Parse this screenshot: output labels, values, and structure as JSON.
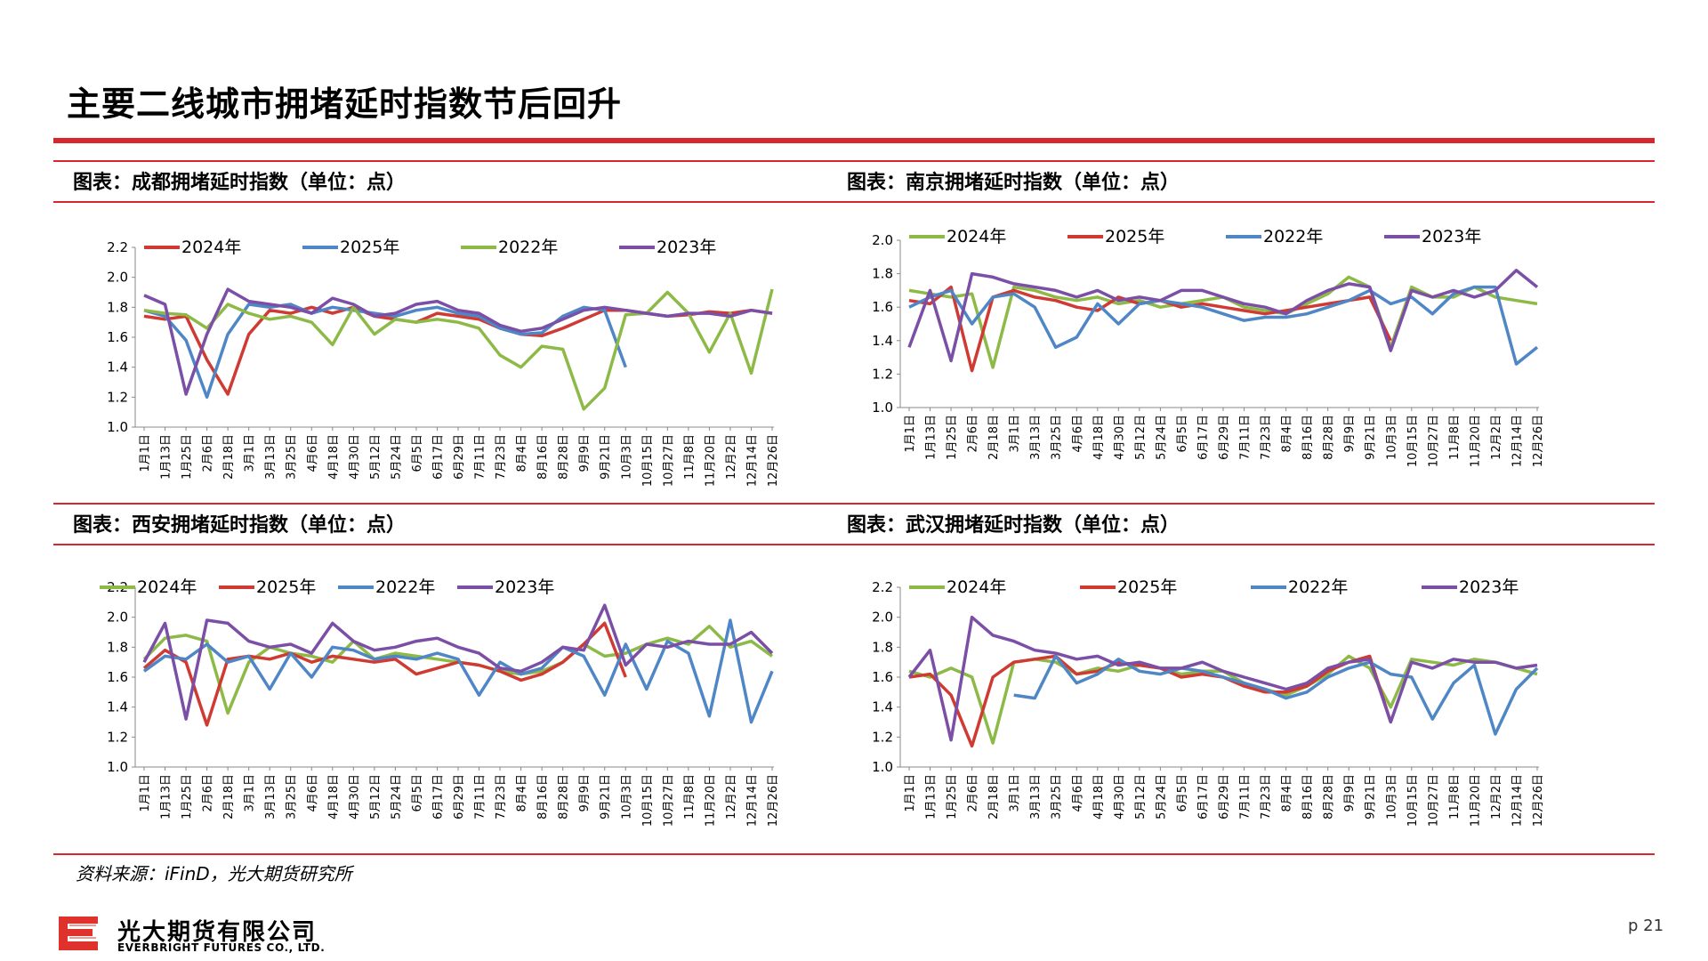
{
  "page": {
    "title": "主要二线城市拥堵延时指数节后回升",
    "source": "资料来源：iFinD，光大期货研究所",
    "page_number": "p 21",
    "logo_cn": "光大期货有限公司",
    "logo_en": "EVERBRIGHT FUTURES CO., LTD."
  },
  "colors": {
    "accent": "#d8262e",
    "green": "#8dba47",
    "red": "#cf3b32",
    "blue": "#4f86c6",
    "purple": "#7b4fa6"
  },
  "panels": [
    {
      "caption": "图表：成都拥堵延时指数（单位：点）"
    },
    {
      "caption": "图表：南京拥堵延时指数（单位：点）"
    },
    {
      "caption": "图表：西安拥堵延时指数（单位：点）"
    },
    {
      "caption": "图表：武汉拥堵延时指数（单位：点）"
    }
  ],
  "chart_data": [
    {
      "type": "line",
      "city": "成都",
      "title": "图表：成都拥堵延时指数（单位：点）",
      "ylim": [
        1.0,
        2.2
      ],
      "yticks": [
        "1.0",
        "1.2",
        "1.4",
        "1.6",
        "1.8",
        "2.0",
        "2.2"
      ],
      "x": [
        "1月1日",
        "1月13日",
        "1月25日",
        "2月6日",
        "2月18日",
        "3月1日",
        "3月13日",
        "3月25日",
        "4月6日",
        "4月18日",
        "4月30日",
        "5月12日",
        "5月24日",
        "6月5日",
        "6月17日",
        "6月29日",
        "7月11日",
        "7月23日",
        "8月4日",
        "8月16日",
        "8月28日",
        "9月9日",
        "9月21日",
        "10月3日",
        "10月15日",
        "10月27日",
        "11月8日",
        "11月20日",
        "12月2日",
        "12月14日",
        "12月26日"
      ],
      "legend_position": "top",
      "series": [
        {
          "name": "2024年",
          "color": "#cf3b32",
          "values": [
            1.74,
            1.72,
            1.74,
            1.45,
            1.22,
            1.62,
            1.78,
            1.76,
            1.8,
            1.76,
            1.8,
            1.74,
            1.72,
            1.7,
            1.76,
            1.74,
            1.72,
            1.66,
            1.62,
            1.61,
            1.66,
            1.72,
            1.78,
            1.78,
            1.76,
            1.74,
            1.75,
            1.77,
            1.76,
            1.78,
            1.76
          ]
        },
        {
          "name": "2025年",
          "color": "#4f86c6",
          "values": [
            1.78,
            1.74,
            1.58,
            1.2,
            1.62,
            1.82,
            1.8,
            1.82,
            1.76,
            1.8,
            1.78,
            1.76,
            1.74,
            1.78,
            1.8,
            1.76,
            1.74,
            1.66,
            1.62,
            1.63,
            1.74,
            1.8,
            1.78,
            1.4,
            null,
            null,
            null,
            null,
            null,
            null,
            null
          ]
        },
        {
          "name": "2022年",
          "color": "#8dba47",
          "values": [
            1.78,
            1.76,
            1.75,
            1.66,
            1.82,
            1.76,
            1.72,
            1.74,
            1.7,
            1.55,
            1.8,
            1.62,
            1.72,
            1.7,
            1.72,
            1.7,
            1.66,
            1.48,
            1.4,
            1.54,
            1.52,
            1.12,
            1.26,
            1.75,
            1.76,
            1.9,
            1.76,
            1.5,
            1.76,
            1.36,
            1.92
          ]
        },
        {
          "name": "2023年",
          "color": "#7b4fa6",
          "values": [
            1.88,
            1.82,
            1.22,
            1.62,
            1.92,
            1.84,
            1.82,
            1.8,
            1.76,
            1.86,
            1.82,
            1.74,
            1.76,
            1.82,
            1.84,
            1.78,
            1.76,
            1.68,
            1.64,
            1.66,
            1.72,
            1.78,
            1.8,
            1.78,
            1.76,
            1.74,
            1.76,
            1.76,
            1.74,
            1.78,
            1.76
          ]
        }
      ]
    },
    {
      "type": "line",
      "city": "南京",
      "title": "图表：南京拥堵延时指数（单位：点）",
      "ylim": [
        1.0,
        2.0
      ],
      "yticks": [
        "1.0",
        "1.2",
        "1.4",
        "1.6",
        "1.8",
        "2.0"
      ],
      "x": [
        "1月1日",
        "1月13日",
        "1月25日",
        "2月6日",
        "2月18日",
        "3月1日",
        "3月13日",
        "3月25日",
        "4月6日",
        "4月18日",
        "4月30日",
        "5月12日",
        "5月24日",
        "6月5日",
        "6月17日",
        "6月29日",
        "7月11日",
        "7月23日",
        "8月4日",
        "8月16日",
        "8月28日",
        "9月9日",
        "9月21日",
        "10月3日",
        "10月15日",
        "10月27日",
        "11月8日",
        "11月20日",
        "12月2日",
        "12月14日",
        "12月26日"
      ],
      "legend_position": "top",
      "series": [
        {
          "name": "2024年",
          "color": "#8dba47",
          "values": [
            1.7,
            1.68,
            1.66,
            1.68,
            1.24,
            1.72,
            1.7,
            1.66,
            1.64,
            1.66,
            1.62,
            1.64,
            1.6,
            1.62,
            1.64,
            1.66,
            1.6,
            1.58,
            1.56,
            1.62,
            1.68,
            1.78,
            1.72,
            1.36,
            1.72,
            1.66,
            1.66,
            1.72,
            1.66,
            1.64,
            1.62
          ]
        },
        {
          "name": "2025年",
          "color": "#cf3b32",
          "values": [
            1.64,
            1.62,
            1.72,
            1.22,
            1.66,
            1.7,
            1.66,
            1.64,
            1.6,
            1.58,
            1.66,
            1.62,
            1.64,
            1.6,
            1.62,
            1.6,
            1.58,
            1.56,
            1.58,
            1.6,
            1.62,
            1.64,
            1.66,
            1.4,
            null,
            null,
            null,
            null,
            null,
            null,
            null
          ]
        },
        {
          "name": "2022年",
          "color": "#4f86c6",
          "values": [
            1.6,
            1.66,
            1.7,
            1.5,
            1.66,
            1.68,
            1.6,
            1.36,
            1.42,
            1.62,
            1.5,
            1.62,
            1.64,
            1.62,
            1.6,
            1.56,
            1.52,
            1.54,
            1.54,
            1.56,
            1.6,
            1.64,
            1.7,
            1.62,
            1.66,
            1.56,
            1.68,
            1.72,
            1.72,
            1.26,
            1.36
          ]
        },
        {
          "name": "2023年",
          "color": "#7b4fa6",
          "values": [
            1.36,
            1.7,
            1.28,
            1.8,
            1.78,
            1.74,
            1.72,
            1.7,
            1.66,
            1.7,
            1.64,
            1.66,
            1.64,
            1.7,
            1.7,
            1.66,
            1.62,
            1.6,
            1.56,
            1.64,
            1.7,
            1.74,
            1.72,
            1.34,
            1.7,
            1.66,
            1.7,
            1.66,
            1.7,
            1.82,
            1.72
          ]
        }
      ]
    },
    {
      "type": "line",
      "city": "西安",
      "title": "图表：西安拥堵延时指数（单位：点）",
      "ylim": [
        1.0,
        2.2
      ],
      "yticks": [
        "1.0",
        "1.2",
        "1.4",
        "1.6",
        "1.8",
        "2.0",
        "2.2"
      ],
      "x": [
        "1月1日",
        "1月13日",
        "1月25日",
        "2月6日",
        "2月18日",
        "3月1日",
        "3月13日",
        "3月25日",
        "4月6日",
        "4月18日",
        "4月30日",
        "5月12日",
        "5月24日",
        "6月5日",
        "6月17日",
        "6月29日",
        "7月11日",
        "7月23日",
        "8月4日",
        "8月16日",
        "8月28日",
        "9月9日",
        "9月21日",
        "10月3日",
        "10月15日",
        "10月27日",
        "11月8日",
        "11月20日",
        "12月2日",
        "12月14日",
        "12月26日"
      ],
      "legend_position": "top",
      "series": [
        {
          "name": "2024年",
          "color": "#8dba47",
          "values": [
            1.72,
            1.86,
            1.88,
            1.84,
            1.36,
            1.7,
            1.8,
            1.76,
            1.74,
            1.7,
            1.84,
            1.72,
            1.76,
            1.74,
            1.72,
            1.7,
            1.68,
            1.64,
            1.62,
            1.64,
            1.7,
            1.82,
            1.74,
            1.76,
            1.82,
            1.86,
            1.82,
            1.94,
            1.8,
            1.84,
            1.74
          ]
        },
        {
          "name": "2025年",
          "color": "#cf3b32",
          "values": [
            1.66,
            1.78,
            1.7,
            1.28,
            1.72,
            1.74,
            1.72,
            1.76,
            1.7,
            1.74,
            1.72,
            1.7,
            1.72,
            1.62,
            1.66,
            1.7,
            1.68,
            1.64,
            1.58,
            1.62,
            1.7,
            1.82,
            1.96,
            1.6,
            null,
            null,
            null,
            null,
            null,
            null,
            null
          ]
        },
        {
          "name": "2022年",
          "color": "#4f86c6",
          "values": [
            1.64,
            1.74,
            1.72,
            1.82,
            1.7,
            1.74,
            1.52,
            1.76,
            1.6,
            1.8,
            1.78,
            1.72,
            1.74,
            1.72,
            1.76,
            1.72,
            1.48,
            1.7,
            1.62,
            1.66,
            1.8,
            1.74,
            1.48,
            1.82,
            1.52,
            1.84,
            1.76,
            1.34,
            1.98,
            1.3,
            1.64
          ]
        },
        {
          "name": "2023年",
          "color": "#7b4fa6",
          "values": [
            1.7,
            1.96,
            1.32,
            1.98,
            1.96,
            1.84,
            1.8,
            1.82,
            1.76,
            1.96,
            1.84,
            1.78,
            1.8,
            1.84,
            1.86,
            1.8,
            1.76,
            1.66,
            1.64,
            1.7,
            1.8,
            1.78,
            2.08,
            1.68,
            1.82,
            1.8,
            1.84,
            1.82,
            1.82,
            1.9,
            1.76
          ]
        }
      ]
    },
    {
      "type": "line",
      "city": "武汉",
      "title": "图表：武汉拥堵延时指数（单位：点）",
      "ylim": [
        1.0,
        2.2
      ],
      "yticks": [
        "1.0",
        "1.2",
        "1.4",
        "1.6",
        "1.8",
        "2.0",
        "2.2"
      ],
      "x": [
        "1月1日",
        "1月13日",
        "1月25日",
        "2月6日",
        "2月18日",
        "3月1日",
        "3月13日",
        "3月25日",
        "4月6日",
        "4月18日",
        "4月30日",
        "5月12日",
        "5月24日",
        "6月5日",
        "6月17日",
        "6月29日",
        "7月11日",
        "7月23日",
        "8月4日",
        "8月16日",
        "8月28日",
        "9月9日",
        "9月21日",
        "10月3日",
        "10月15日",
        "10月27日",
        "11月8日",
        "11月20日",
        "12月2日",
        "12月14日",
        "12月26日"
      ],
      "legend_position": "top",
      "series": [
        {
          "name": "2024年",
          "color": "#8dba47",
          "values": [
            1.64,
            1.6,
            1.66,
            1.6,
            1.16,
            1.7,
            1.72,
            1.7,
            1.62,
            1.66,
            1.64,
            1.68,
            1.66,
            1.62,
            1.64,
            1.64,
            1.56,
            1.52,
            1.48,
            1.54,
            1.62,
            1.74,
            1.66,
            1.4,
            1.72,
            1.7,
            1.68,
            1.72,
            1.7,
            1.66,
            1.62
          ]
        },
        {
          "name": "2025年",
          "color": "#cf3b32",
          "values": [
            1.6,
            1.62,
            1.48,
            1.14,
            1.6,
            1.7,
            1.72,
            1.74,
            1.62,
            1.64,
            1.7,
            1.68,
            1.66,
            1.6,
            1.62,
            1.6,
            1.54,
            1.5,
            1.5,
            1.54,
            1.64,
            1.7,
            1.74,
            1.3,
            null,
            null,
            null,
            null,
            null,
            null,
            null
          ]
        },
        {
          "name": "2022年",
          "color": "#4f86c6",
          "values": [
            null,
            null,
            null,
            null,
            null,
            1.48,
            1.46,
            1.74,
            1.56,
            1.62,
            1.72,
            1.64,
            1.62,
            1.66,
            1.64,
            1.6,
            1.56,
            1.52,
            1.46,
            1.5,
            1.6,
            1.66,
            1.7,
            1.62,
            1.6,
            1.32,
            1.56,
            1.68,
            1.22,
            1.52,
            1.66
          ]
        },
        {
          "name": "2023年",
          "color": "#7b4fa6",
          "values": [
            1.6,
            1.78,
            1.18,
            2.0,
            1.88,
            1.84,
            1.78,
            1.76,
            1.72,
            1.74,
            1.68,
            1.7,
            1.66,
            1.66,
            1.7,
            1.64,
            1.6,
            1.56,
            1.52,
            1.56,
            1.66,
            1.7,
            1.72,
            1.3,
            1.7,
            1.66,
            1.72,
            1.7,
            1.7,
            1.66,
            1.68
          ]
        }
      ]
    }
  ]
}
